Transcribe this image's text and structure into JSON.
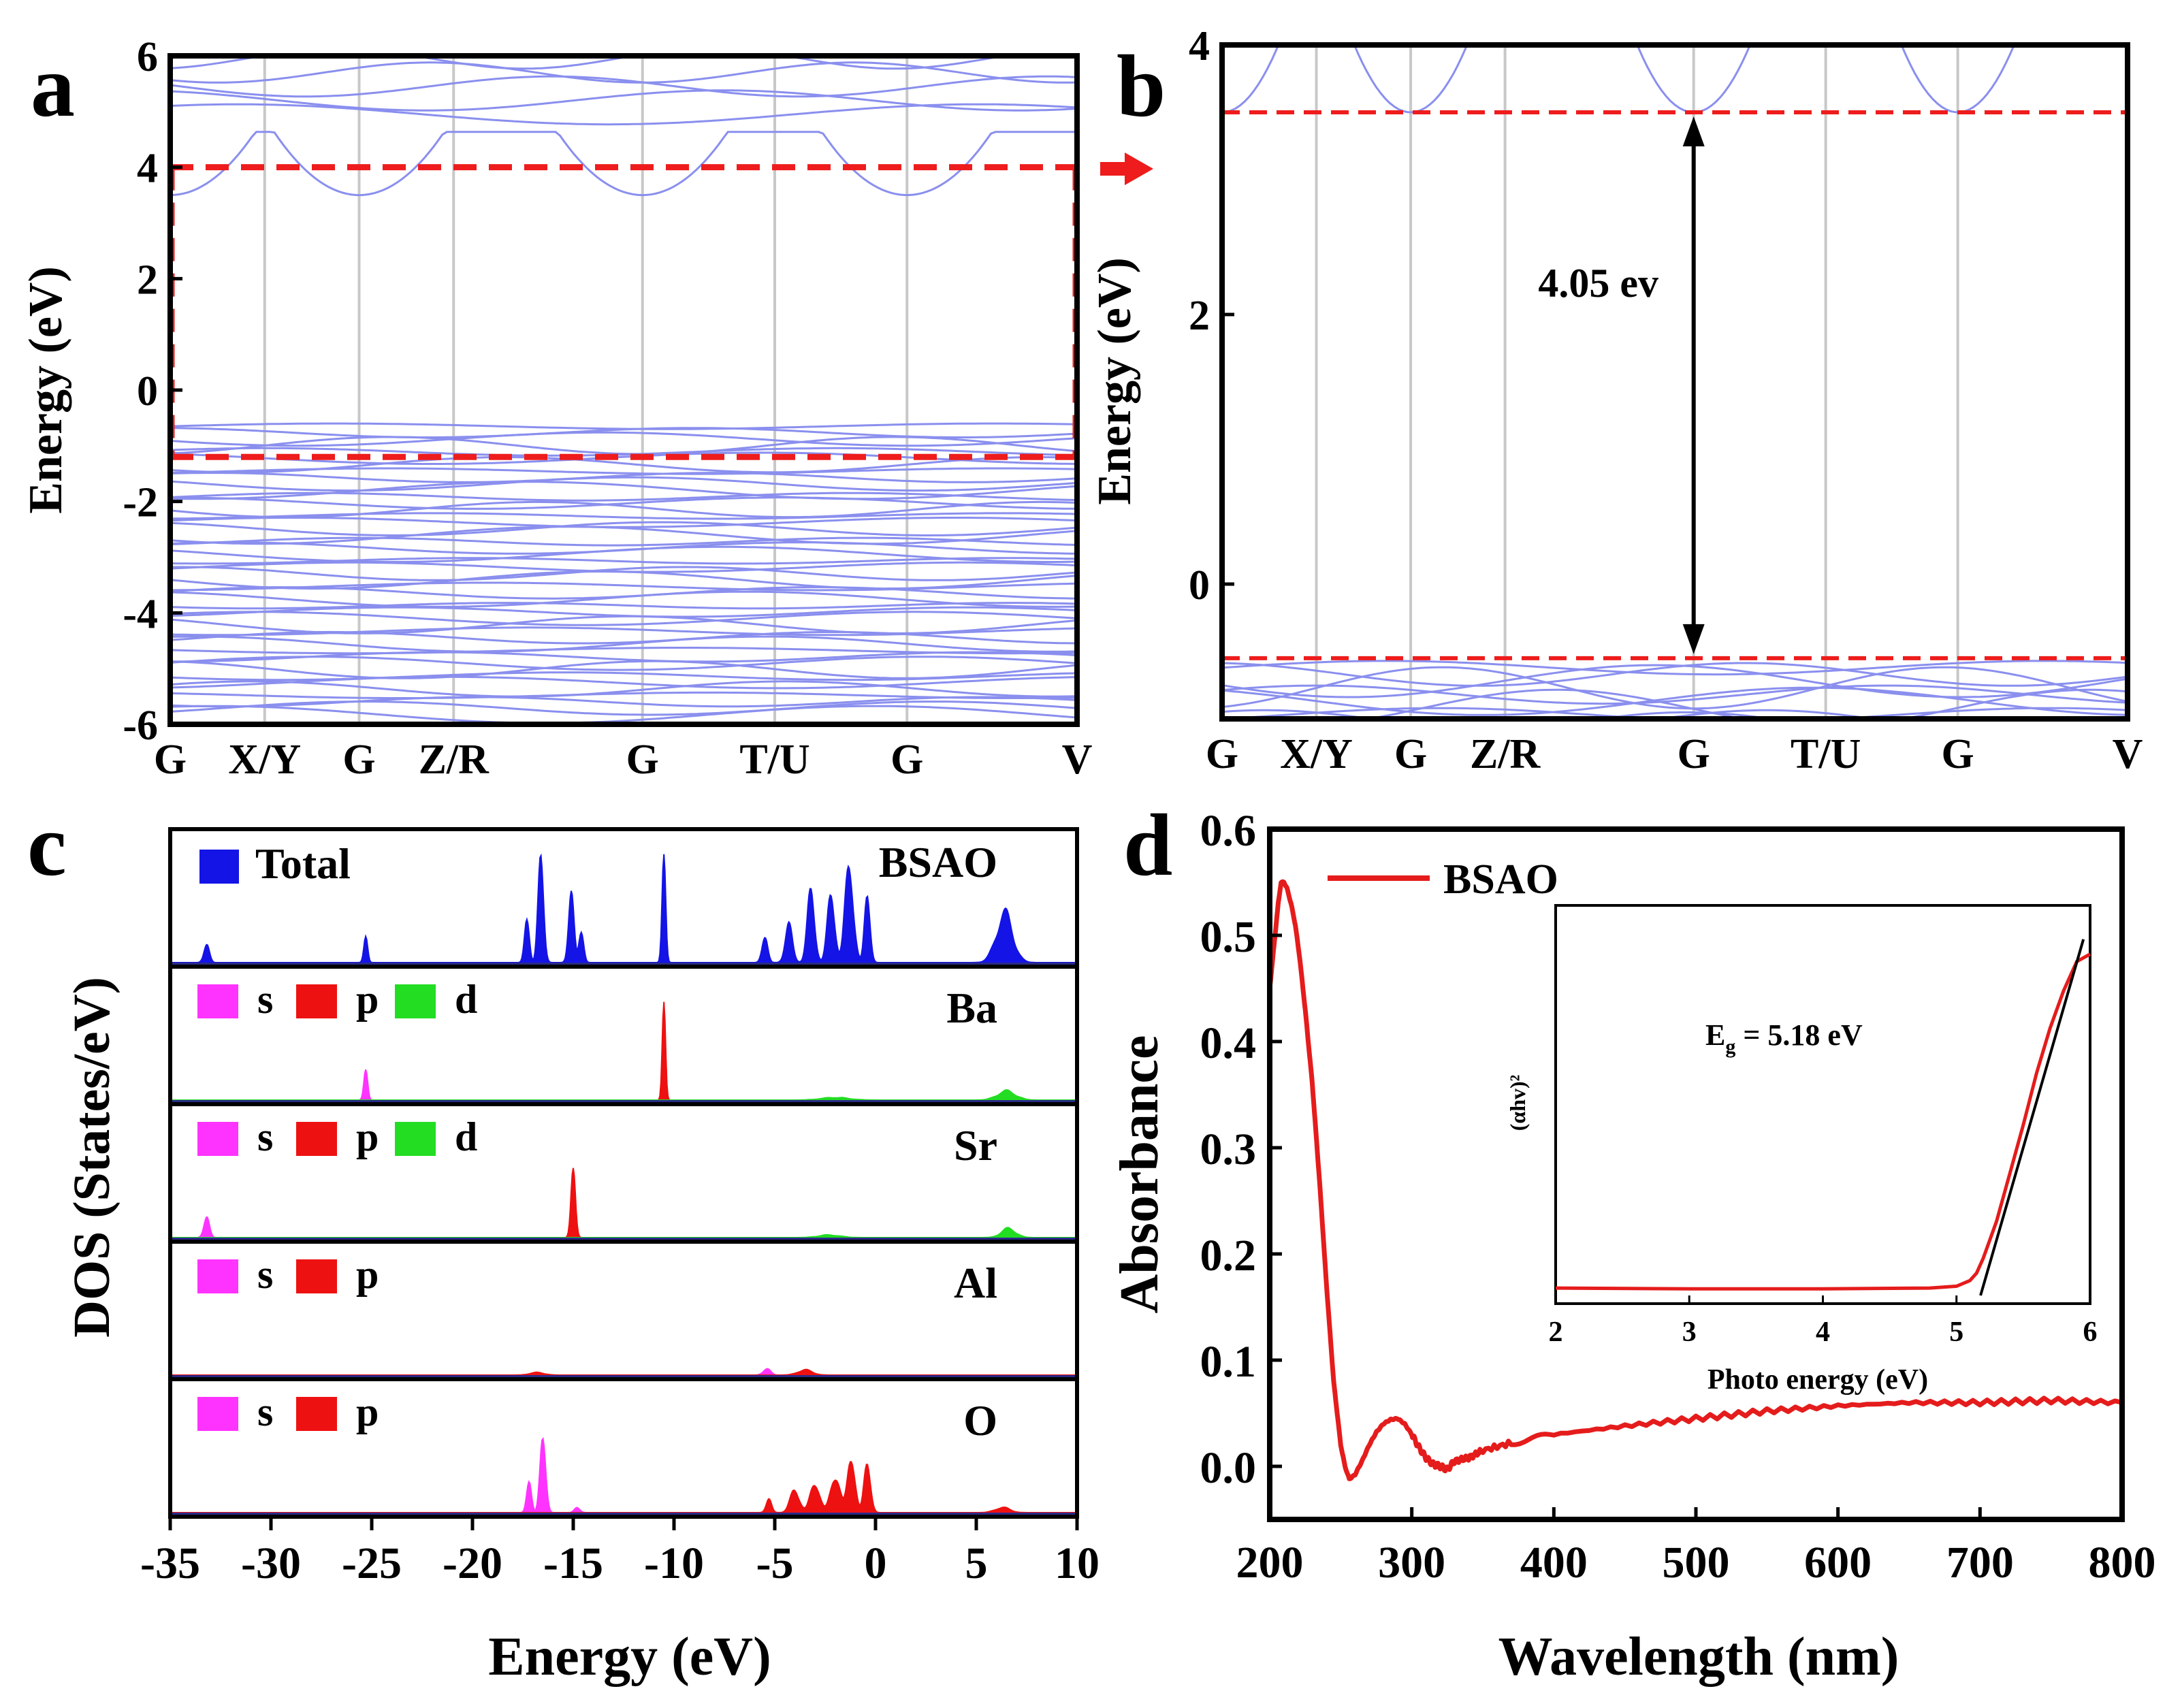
{
  "figure": {
    "panel_labels": [
      "a",
      "b",
      "c",
      "d"
    ],
    "colors": {
      "band": "#8a8fee",
      "dashed_red": "#ee1c1c",
      "total": "#1414e6",
      "s": "#ff33ff",
      "p": "#ee1111",
      "d": "#22dd22",
      "absorbance": "#e51c1c",
      "fit_line": "#000000",
      "kpath_line": "#c8c8c8"
    }
  },
  "chart_data": [
    {
      "id": "a",
      "type": "line",
      "title": "",
      "ylabel": "Energy (eV)",
      "ylim": [
        -6,
        6
      ],
      "yticks": [
        "6",
        "4",
        "2",
        "0",
        "-2",
        "-4",
        "-6"
      ],
      "ytick_values": [
        6,
        4,
        2,
        0,
        -2,
        -4,
        -6
      ],
      "kpoints": [
        "G",
        "X/Y",
        "G",
        "Z/R",
        "G",
        "T/U",
        "G",
        "V"
      ],
      "kpoint_positions": [
        0,
        1,
        2,
        3,
        5,
        6.4,
        7.8,
        9.6
      ],
      "dashed_box": {
        "top_energy": 4.0,
        "bottom_energy": -1.2
      },
      "conduction_min": 3.5,
      "valence_max": -0.6
    },
    {
      "id": "b",
      "type": "line",
      "title": "",
      "ylabel": "Energy (eV)",
      "ylim": [
        -1.0,
        4.0
      ],
      "yticks": [
        "4",
        "2",
        "0"
      ],
      "ytick_values": [
        4,
        2,
        0
      ],
      "kpoints": [
        "G",
        "X/Y",
        "G",
        "Z/R",
        "G",
        "T/U",
        "G",
        "V"
      ],
      "kpoint_positions": [
        0,
        1,
        2,
        3,
        5,
        6.4,
        7.8,
        9.6
      ],
      "cbm": 3.5,
      "vbm": -0.55,
      "gap_annotation": "4.05 ev"
    },
    {
      "id": "c",
      "type": "area",
      "xlabel": "Energy (eV)",
      "ylabel": "DOS (States/eV)",
      "xlim": [
        -35,
        10
      ],
      "xticks": [
        "-35",
        "-30",
        "-25",
        "-20",
        "-15",
        "-10",
        "-5",
        "0",
        "5",
        "10"
      ],
      "xtick_values": [
        -35,
        -30,
        -25,
        -20,
        -15,
        -10,
        -5,
        0,
        5,
        10
      ],
      "subpanels": [
        {
          "element": "BSAO",
          "legend": [
            "Total"
          ],
          "series": [
            {
              "name": "Total",
              "peaks": [
                [
                  -33.2,
                  0.14,
                  0.3
                ],
                [
                  -25.3,
                  0.24,
                  0.2
                ],
                [
                  -17.3,
                  0.4,
                  0.25
                ],
                [
                  -16.6,
                  0.85,
                  0.3
                ],
                [
                  -15.1,
                  0.5,
                  0.3
                ],
                [
                  -14.6,
                  0.28,
                  0.25
                ],
                [
                  -10.5,
                  0.75,
                  0.2
                ],
                [
                  -5.5,
                  0.22,
                  0.3
                ],
                [
                  -4.3,
                  0.28,
                  0.4
                ],
                [
                  -3.2,
                  0.55,
                  0.4
                ],
                [
                  -2.2,
                  0.55,
                  0.4
                ],
                [
                  -1.3,
                  0.78,
                  0.45
                ],
                [
                  -0.4,
                  0.55,
                  0.3
                ],
                [
                  6.4,
                  0.38,
                  0.9
                ]
              ]
            }
          ]
        },
        {
          "element": "Ba",
          "legend": [
            "s",
            "p",
            "d"
          ],
          "series": [
            {
              "name": "s",
              "peaks": [
                [
                  -25.3,
                  0.28,
                  0.2
                ]
              ]
            },
            {
              "name": "p",
              "peaks": [
                [
                  -10.5,
                  0.68,
                  0.18
                ]
              ]
            },
            {
              "name": "d",
              "peaks": [
                [
                  6.5,
                  0.07,
                  1.0
                ],
                [
                  -2.0,
                  0.02,
                  1.5
                ]
              ]
            }
          ]
        },
        {
          "element": "Sr",
          "legend": [
            "s",
            "p",
            "d"
          ],
          "series": [
            {
              "name": "s",
              "peaks": [
                [
                  -33.2,
                  0.16,
                  0.3
                ]
              ]
            },
            {
              "name": "p",
              "peaks": [
                [
                  -15.0,
                  0.48,
                  0.25
                ]
              ]
            },
            {
              "name": "d",
              "peaks": [
                [
                  6.6,
                  0.07,
                  0.8
                ],
                [
                  -2.3,
                  0.02,
                  1.2
                ]
              ]
            }
          ]
        },
        {
          "element": "Al",
          "legend": [
            "s",
            "p"
          ],
          "series": [
            {
              "name": "s",
              "peaks": [
                [
                  -5.4,
                  0.05,
                  0.4
                ]
              ]
            },
            {
              "name": "p",
              "peaks": [
                [
                  -16.8,
                  0.02,
                  0.8
                ],
                [
                  -3.5,
                  0.04,
                  0.8
                ]
              ]
            }
          ]
        },
        {
          "element": "O",
          "legend": [
            "s",
            "p"
          ],
          "series": [
            {
              "name": "s",
              "peaks": [
                [
                  -17.2,
                  0.28,
                  0.25
                ],
                [
                  -16.5,
                  0.65,
                  0.3
                ],
                [
                  -14.8,
                  0.04,
                  0.3
                ]
              ]
            },
            {
              "name": "p",
              "peaks": [
                [
                  -5.3,
                  0.1,
                  0.3
                ],
                [
                  -4.0,
                  0.18,
                  0.5
                ],
                [
                  -3.0,
                  0.24,
                  0.5
                ],
                [
                  -2.0,
                  0.3,
                  0.5
                ],
                [
                  -1.2,
                  0.46,
                  0.4
                ],
                [
                  -0.4,
                  0.4,
                  0.35
                ],
                [
                  6.3,
                  0.04,
                  0.8
                ]
              ]
            }
          ]
        }
      ]
    },
    {
      "id": "d",
      "type": "line",
      "xlabel": "Wavelength (nm)",
      "ylabel": "Absorbance",
      "xlim": [
        200,
        800
      ],
      "ylim": [
        -0.05,
        0.6
      ],
      "xticks": [
        "200",
        "300",
        "400",
        "500",
        "600",
        "700",
        "800"
      ],
      "xtick_values": [
        200,
        300,
        400,
        500,
        600,
        700,
        800
      ],
      "yticks": [
        "0.0",
        "0.1",
        "0.2",
        "0.3",
        "0.4",
        "0.5",
        "0.6"
      ],
      "ytick_values": [
        0.0,
        0.1,
        0.2,
        0.3,
        0.4,
        0.5,
        0.6
      ],
      "legend": [
        "BSAO"
      ],
      "series": [
        {
          "name": "BSAO",
          "x": [
            200,
            203,
            206,
            208,
            210,
            212,
            215,
            218,
            221,
            225,
            230,
            235,
            240,
            245,
            250,
            253,
            256,
            260,
            265,
            270,
            275,
            280,
            285,
            290,
            295,
            300,
            305,
            310,
            315,
            320,
            325,
            330,
            340,
            350,
            370,
            400,
            450,
            500,
            550,
            600,
            650,
            700,
            750,
            800
          ],
          "y": [
            0.45,
            0.49,
            0.53,
            0.55,
            0.55,
            0.545,
            0.53,
            0.51,
            0.48,
            0.43,
            0.36,
            0.27,
            0.17,
            0.08,
            0.02,
            0.0,
            -0.012,
            -0.008,
            0.005,
            0.02,
            0.032,
            0.04,
            0.044,
            0.045,
            0.04,
            0.03,
            0.018,
            0.008,
            0.002,
            0.0,
            -0.003,
            0.005,
            0.008,
            0.015,
            0.022,
            0.03,
            0.038,
            0.045,
            0.052,
            0.057,
            0.06,
            0.06,
            0.062,
            0.06
          ]
        }
      ],
      "inset": {
        "xlabel": "Photo energy (eV)",
        "ylabel": "(αhv)²",
        "xlim": [
          2,
          6
        ],
        "xticks": [
          "2",
          "3",
          "4",
          "5",
          "6"
        ],
        "xtick_values": [
          2,
          3,
          4,
          5,
          6
        ],
        "annotation": "Eg = 5.18 eV",
        "annotation_main": "E",
        "annotation_sub": "g",
        "annotation_rest": " = 5.18 eV",
        "curve": {
          "x": [
            2.0,
            3.0,
            4.0,
            4.8,
            5.0,
            5.1,
            5.15,
            5.2,
            5.3,
            5.4,
            5.5,
            5.6,
            5.7,
            5.8,
            5.9,
            6.0
          ],
          "y": [
            0.02,
            0.018,
            0.018,
            0.02,
            0.025,
            0.04,
            0.06,
            0.1,
            0.2,
            0.33,
            0.46,
            0.6,
            0.72,
            0.82,
            0.9,
            0.92
          ]
        },
        "fit_line": {
          "x": [
            5.18,
            5.95
          ],
          "y": [
            0.0,
            0.96
          ]
        }
      }
    }
  ]
}
